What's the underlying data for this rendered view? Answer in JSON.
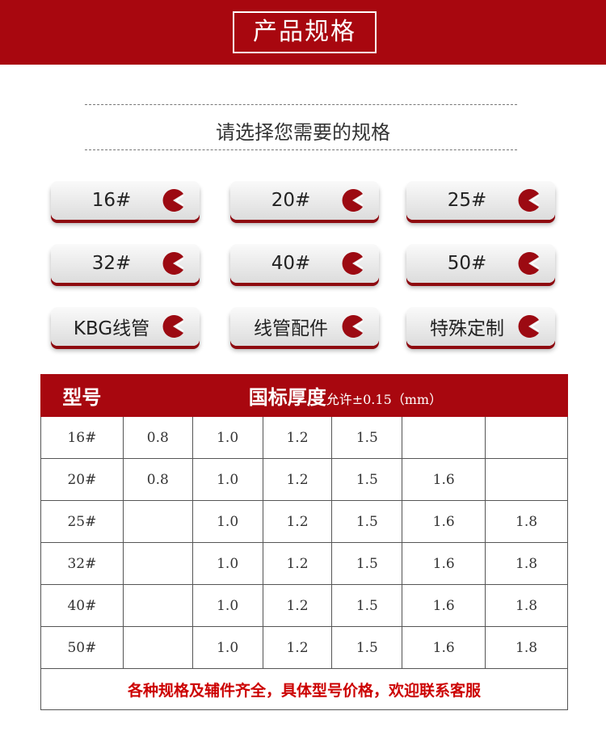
{
  "banner": {
    "title": "产品规格"
  },
  "subtitle": "请选择您需要的规格",
  "buttons": [
    "16#",
    "20#",
    "25#",
    "32#",
    "40#",
    "50#",
    "KBG线管",
    "线管配件",
    "特殊定制"
  ],
  "accent": "#a8070f",
  "table": {
    "header_model": "型号",
    "header_thickness": "国标厚度",
    "header_tolerance": "允许±0.15（mm）",
    "rows": [
      [
        "16#",
        "0.8",
        "1.0",
        "1.2",
        "1.5",
        "",
        ""
      ],
      [
        "20#",
        "0.8",
        "1.0",
        "1.2",
        "1.5",
        "1.6",
        ""
      ],
      [
        "25#",
        "",
        "1.0",
        "1.2",
        "1.5",
        "1.6",
        "1.8"
      ],
      [
        "32#",
        "",
        "1.0",
        "1.2",
        "1.5",
        "1.6",
        "1.8"
      ],
      [
        "40#",
        "",
        "1.0",
        "1.2",
        "1.5",
        "1.6",
        "1.8"
      ],
      [
        "50#",
        "",
        "1.0",
        "1.2",
        "1.5",
        "1.6",
        "1.8"
      ]
    ],
    "footer": "各种规格及辅件齐全，具体型号价格，欢迎联系客服"
  }
}
